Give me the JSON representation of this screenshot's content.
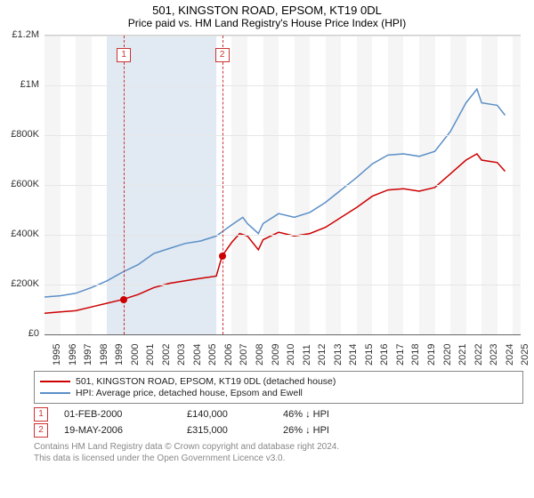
{
  "title": "501, KINGSTON ROAD, EPSOM, KT19 0DL",
  "subtitle": "Price paid vs. HM Land Registry's House Price Index (HPI)",
  "chart": {
    "type": "line",
    "background_color": "#ffffff",
    "grid_color": "#e6e6e6",
    "band_colors": {
      "a": "#f5f5f5",
      "b": "#ffffff",
      "highlight": "#e1e9f2"
    },
    "highlight_years": [
      1999,
      2000,
      2001,
      2002,
      2003,
      2004,
      2005
    ],
    "x_years": [
      1995,
      1996,
      1997,
      1998,
      1999,
      2000,
      2001,
      2002,
      2003,
      2004,
      2005,
      2006,
      2007,
      2008,
      2009,
      2010,
      2011,
      2012,
      2013,
      2014,
      2015,
      2016,
      2017,
      2018,
      2019,
      2020,
      2021,
      2022,
      2023,
      2024,
      2025
    ],
    "xlim": [
      1995,
      2025.5
    ],
    "ylim": [
      0,
      1200000
    ],
    "ytick_step": 200000,
    "y_tick_labels": [
      "£0",
      "£200K",
      "£400K",
      "£600K",
      "£800K",
      "£1M",
      "£1.2M"
    ],
    "label_fontsize": 11,
    "series": [
      {
        "name": "property",
        "label": "501, KINGSTON ROAD, EPSOM, KT19 0DL (detached house)",
        "color": "#cc0000",
        "line_width": 1.5,
        "points": [
          [
            1995,
            85000
          ],
          [
            1996,
            90000
          ],
          [
            1997,
            95000
          ],
          [
            1998,
            110000
          ],
          [
            1999,
            125000
          ],
          [
            2000,
            140000
          ],
          [
            2001,
            160000
          ],
          [
            2002,
            188000
          ],
          [
            2003,
            205000
          ],
          [
            2004,
            215000
          ],
          [
            2005,
            225000
          ],
          [
            2006,
            234000
          ],
          [
            2006.38,
            315000
          ],
          [
            2007,
            370000
          ],
          [
            2007.5,
            405000
          ],
          [
            2008,
            395000
          ],
          [
            2008.7,
            340000
          ],
          [
            2009,
            380000
          ],
          [
            2010,
            410000
          ],
          [
            2011,
            395000
          ],
          [
            2012,
            405000
          ],
          [
            2013,
            430000
          ],
          [
            2014,
            470000
          ],
          [
            2015,
            510000
          ],
          [
            2016,
            555000
          ],
          [
            2017,
            580000
          ],
          [
            2018,
            585000
          ],
          [
            2019,
            575000
          ],
          [
            2020,
            590000
          ],
          [
            2021,
            645000
          ],
          [
            2022,
            700000
          ],
          [
            2022.7,
            725000
          ],
          [
            2023,
            700000
          ],
          [
            2024,
            690000
          ],
          [
            2024.5,
            655000
          ]
        ]
      },
      {
        "name": "hpi",
        "label": "HPI: Average price, detached house, Epsom and Ewell",
        "color": "#5b8fc7",
        "line_width": 1.5,
        "points": [
          [
            1995,
            150000
          ],
          [
            1996,
            155000
          ],
          [
            1997,
            165000
          ],
          [
            1998,
            188000
          ],
          [
            1999,
            215000
          ],
          [
            2000,
            250000
          ],
          [
            2001,
            280000
          ],
          [
            2002,
            325000
          ],
          [
            2003,
            345000
          ],
          [
            2004,
            365000
          ],
          [
            2005,
            375000
          ],
          [
            2006,
            395000
          ],
          [
            2007,
            440000
          ],
          [
            2007.7,
            470000
          ],
          [
            2008,
            445000
          ],
          [
            2008.7,
            405000
          ],
          [
            2009,
            445000
          ],
          [
            2010,
            485000
          ],
          [
            2011,
            470000
          ],
          [
            2012,
            490000
          ],
          [
            2013,
            530000
          ],
          [
            2014,
            580000
          ],
          [
            2015,
            630000
          ],
          [
            2016,
            685000
          ],
          [
            2017,
            720000
          ],
          [
            2018,
            725000
          ],
          [
            2019,
            715000
          ],
          [
            2020,
            735000
          ],
          [
            2021,
            815000
          ],
          [
            2022,
            930000
          ],
          [
            2022.7,
            985000
          ],
          [
            2023,
            930000
          ],
          [
            2024,
            920000
          ],
          [
            2024.5,
            880000
          ]
        ]
      }
    ],
    "markers": [
      {
        "idx": "1",
        "year": 2000.08,
        "price": 140000
      },
      {
        "idx": "2",
        "year": 2006.38,
        "price": 315000
      }
    ]
  },
  "legend": {
    "series1_label": "501, KINGSTON ROAD, EPSOM, KT19 0DL (detached house)",
    "series1_color": "#cc0000",
    "series2_label": "HPI: Average price, detached house, Epsom and Ewell",
    "series2_color": "#5b8fc7"
  },
  "transactions": [
    {
      "idx": "1",
      "date": "01-FEB-2000",
      "price": "£140,000",
      "pct": "46% ↓ HPI"
    },
    {
      "idx": "2",
      "date": "19-MAY-2006",
      "price": "£315,000",
      "pct": "26% ↓ HPI"
    }
  ],
  "footnote_line1": "Contains HM Land Registry data © Crown copyright and database right 2024.",
  "footnote_line2": "This data is licensed under the Open Government Licence v3.0."
}
